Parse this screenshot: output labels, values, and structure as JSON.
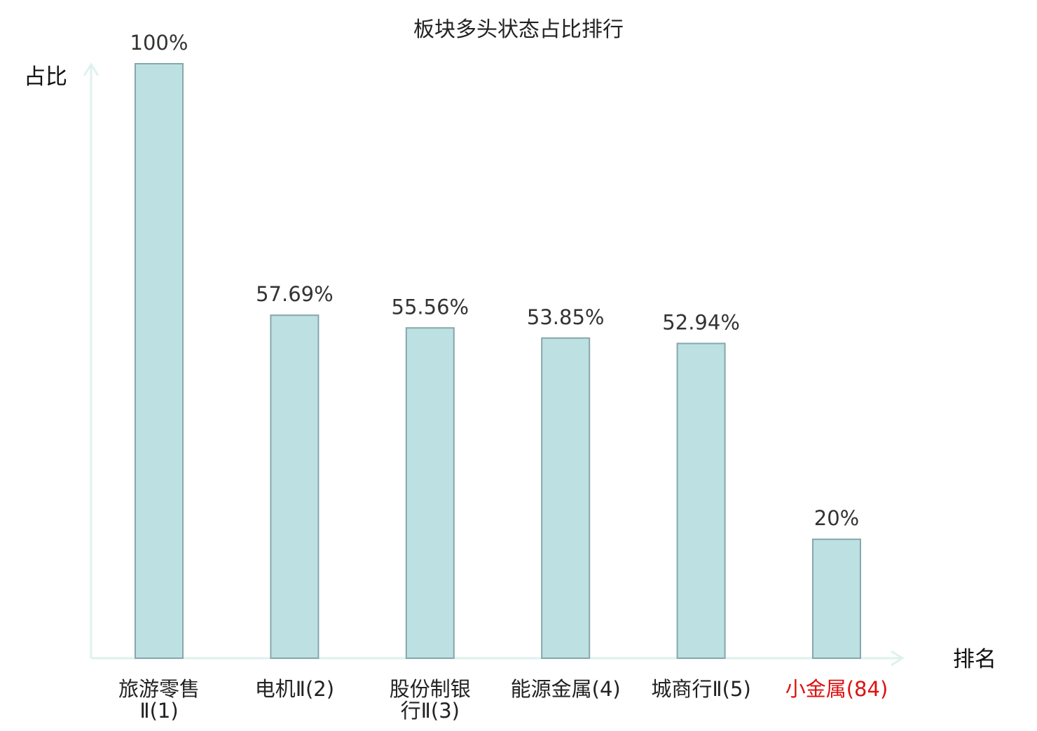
{
  "chart_data": {
    "type": "bar",
    "title": "板块多头状态占比排行",
    "ylabel": "占比",
    "xlabel": "排名",
    "ylim": [
      0,
      100
    ],
    "grid": false,
    "legend": "none",
    "categories": [
      "旅游零售Ⅱ(1)",
      "电机Ⅱ(2)",
      "股份制银行Ⅱ(3)",
      "能源金属(4)",
      "城商行Ⅱ(5)",
      "小金属(84)"
    ],
    "values": [
      100,
      57.69,
      55.56,
      53.85,
      52.94,
      20
    ],
    "value_labels": [
      "100%",
      "57.69%",
      "55.56%",
      "53.85%",
      "52.94%",
      "20%"
    ],
    "category_lines": [
      {
        "line1": "旅游零售",
        "line2": "Ⅱ(1)"
      },
      {
        "line1": "电机Ⅱ(2)",
        "line2": ""
      },
      {
        "line1": "股份制银",
        "line2": "行Ⅱ(3)"
      },
      {
        "line1": "能源金属(4)",
        "line2": ""
      },
      {
        "line1": "城商行Ⅱ(5)",
        "line2": ""
      },
      {
        "line1": "小金属(84)",
        "line2": ""
      }
    ],
    "highlighted_category": "小金属(84)"
  },
  "colors": {
    "bar_fill": "#bde0e3",
    "bar_stroke": "#86a7ab",
    "axis": "#dff1ee",
    "text": "#333333",
    "category_text": "#222222",
    "highlight_text": "#dd1111"
  }
}
